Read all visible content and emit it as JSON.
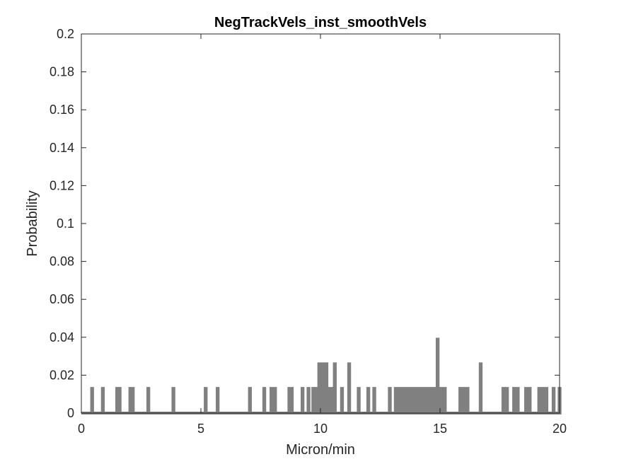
{
  "chart_data": {
    "type": "line",
    "title": "NegTrackVels_inst_smoothVels",
    "xlabel": "Micron/min",
    "ylabel": "Probability",
    "xlim": [
      0,
      20
    ],
    "ylim": [
      0,
      0.2
    ],
    "xticks": [
      "0",
      "5",
      "10",
      "15",
      "20"
    ],
    "yticks": [
      "0",
      "0.02",
      "0.04",
      "0.06",
      "0.08",
      "0.1",
      "0.12",
      "0.14",
      "0.16",
      "0.18",
      "0.2"
    ],
    "grid": false,
    "line_color": "#808080",
    "series": [
      {
        "x": [
          0.45,
          0.9,
          1.5,
          1.6,
          2.05,
          2.15,
          2.8,
          3.85,
          5.2,
          5.7,
          7.05,
          7.65,
          7.95,
          8.1,
          8.7,
          8.8,
          9.25,
          9.5,
          9.7,
          9.8,
          9.9,
          9.95,
          10.0,
          10.05,
          10.15,
          10.25,
          10.35,
          10.45,
          10.6,
          10.9,
          11.2,
          11.6,
          12.0,
          12.25,
          12.9,
          13.15,
          13.25,
          13.4,
          13.5,
          13.6,
          13.7,
          13.8,
          13.95,
          14.05,
          14.15,
          14.25,
          14.35,
          14.45,
          14.55,
          14.65,
          14.75,
          14.9,
          15.05,
          15.2,
          15.85,
          16.0,
          16.15,
          16.7,
          17.65,
          17.8,
          18.1,
          18.25,
          18.6,
          18.75,
          19.15,
          19.3,
          19.45,
          19.75,
          20.0
        ],
        "y": [
          0.013,
          0.013,
          0.013,
          0.013,
          0.013,
          0.013,
          0.013,
          0.013,
          0.013,
          0.013,
          0.013,
          0.013,
          0.013,
          0.013,
          0.013,
          0.013,
          0.013,
          0.013,
          0.013,
          0.013,
          0.013,
          0.026,
          0.026,
          0.026,
          0.026,
          0.026,
          0.013,
          0.013,
          0.026,
          0.013,
          0.026,
          0.013,
          0.013,
          0.013,
          0.013,
          0.013,
          0.013,
          0.013,
          0.013,
          0.013,
          0.013,
          0.013,
          0.013,
          0.013,
          0.013,
          0.013,
          0.013,
          0.013,
          0.013,
          0.013,
          0.013,
          0.039,
          0.013,
          0.013,
          0.013,
          0.013,
          0.013,
          0.026,
          0.013,
          0.013,
          0.013,
          0.013,
          0.013,
          0.013,
          0.013,
          0.013,
          0.013,
          0.013,
          0.013
        ]
      }
    ]
  }
}
